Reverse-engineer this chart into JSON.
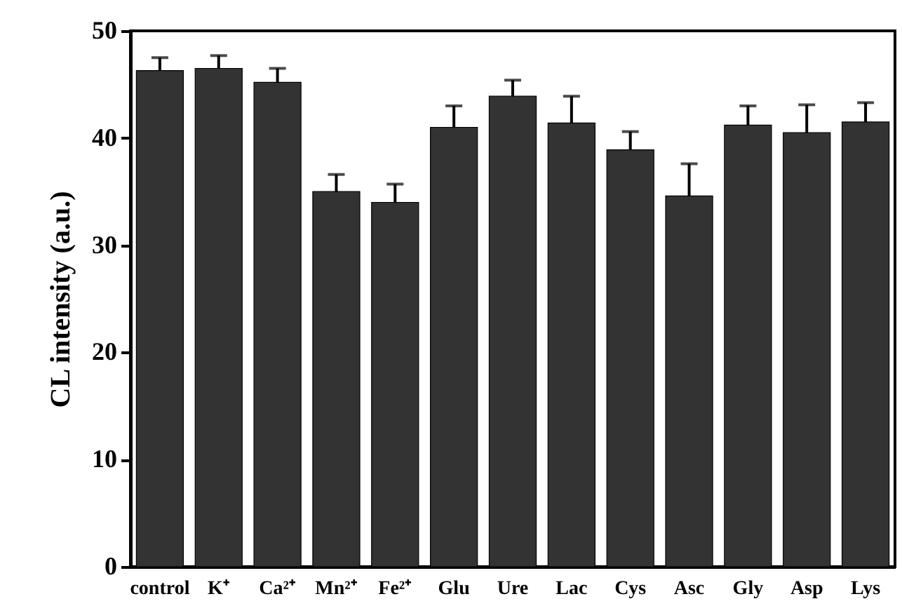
{
  "chart_data": {
    "type": "bar",
    "ylabel": "CL intensity (a.u.)",
    "categories": [
      "control",
      "K⁺",
      "Ca²⁺",
      "Mn²⁺",
      "Fe²⁺",
      "Glu",
      "Ure",
      "Lac",
      "Cys",
      "Asc",
      "Gly",
      "Asp",
      "Lys"
    ],
    "values": [
      46.3,
      46.5,
      45.2,
      35.0,
      34.0,
      41.0,
      43.9,
      41.4,
      38.9,
      34.6,
      41.2,
      40.5,
      41.5
    ],
    "errors": [
      1.2,
      1.2,
      1.3,
      1.6,
      1.7,
      2.0,
      1.5,
      2.5,
      1.7,
      3.0,
      1.8,
      2.6,
      1.8
    ],
    "color": "#333333",
    "ylim": [
      0,
      50
    ],
    "yticks": [
      0,
      10,
      20,
      30,
      40,
      50
    ],
    "grid": false
  }
}
